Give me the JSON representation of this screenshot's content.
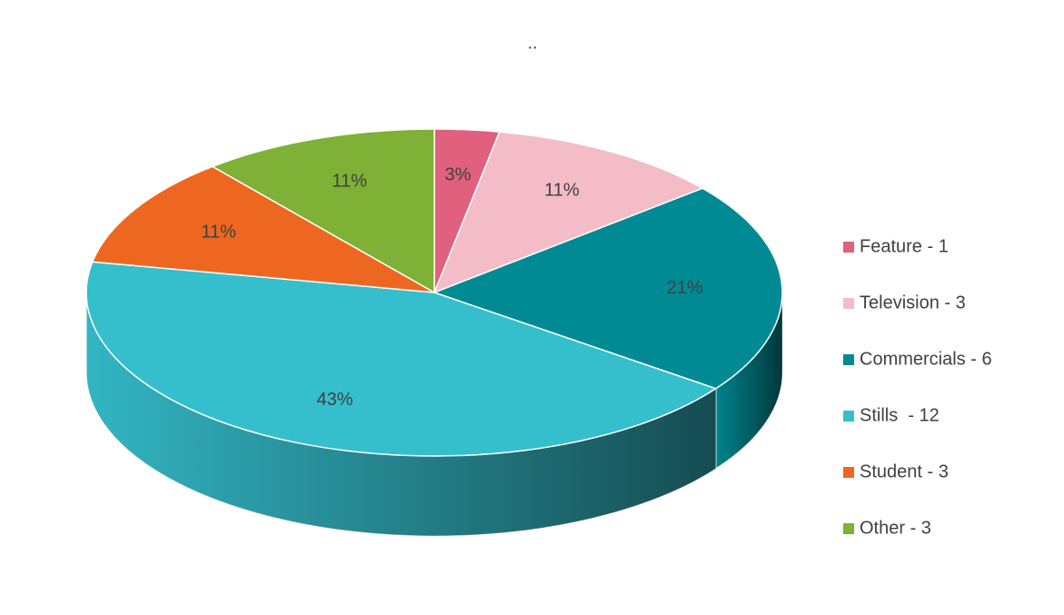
{
  "chart_data": {
    "type": "pie",
    "title": "..",
    "categories": [
      "Feature - 1",
      "Television - 3",
      "Commercials - 6",
      "Stills  - 12",
      "Student - 3",
      "Other - 3"
    ],
    "values": [
      3,
      11,
      21,
      43,
      11,
      11
    ],
    "value_labels": [
      "3%",
      "11%",
      "21%",
      "43%",
      "11%",
      "11%"
    ],
    "colors": [
      "#e0607e",
      "#f4bcc6",
      "#008b94",
      "#35bfcd",
      "#ee6720",
      "#7eb135"
    ],
    "legend": "right"
  }
}
